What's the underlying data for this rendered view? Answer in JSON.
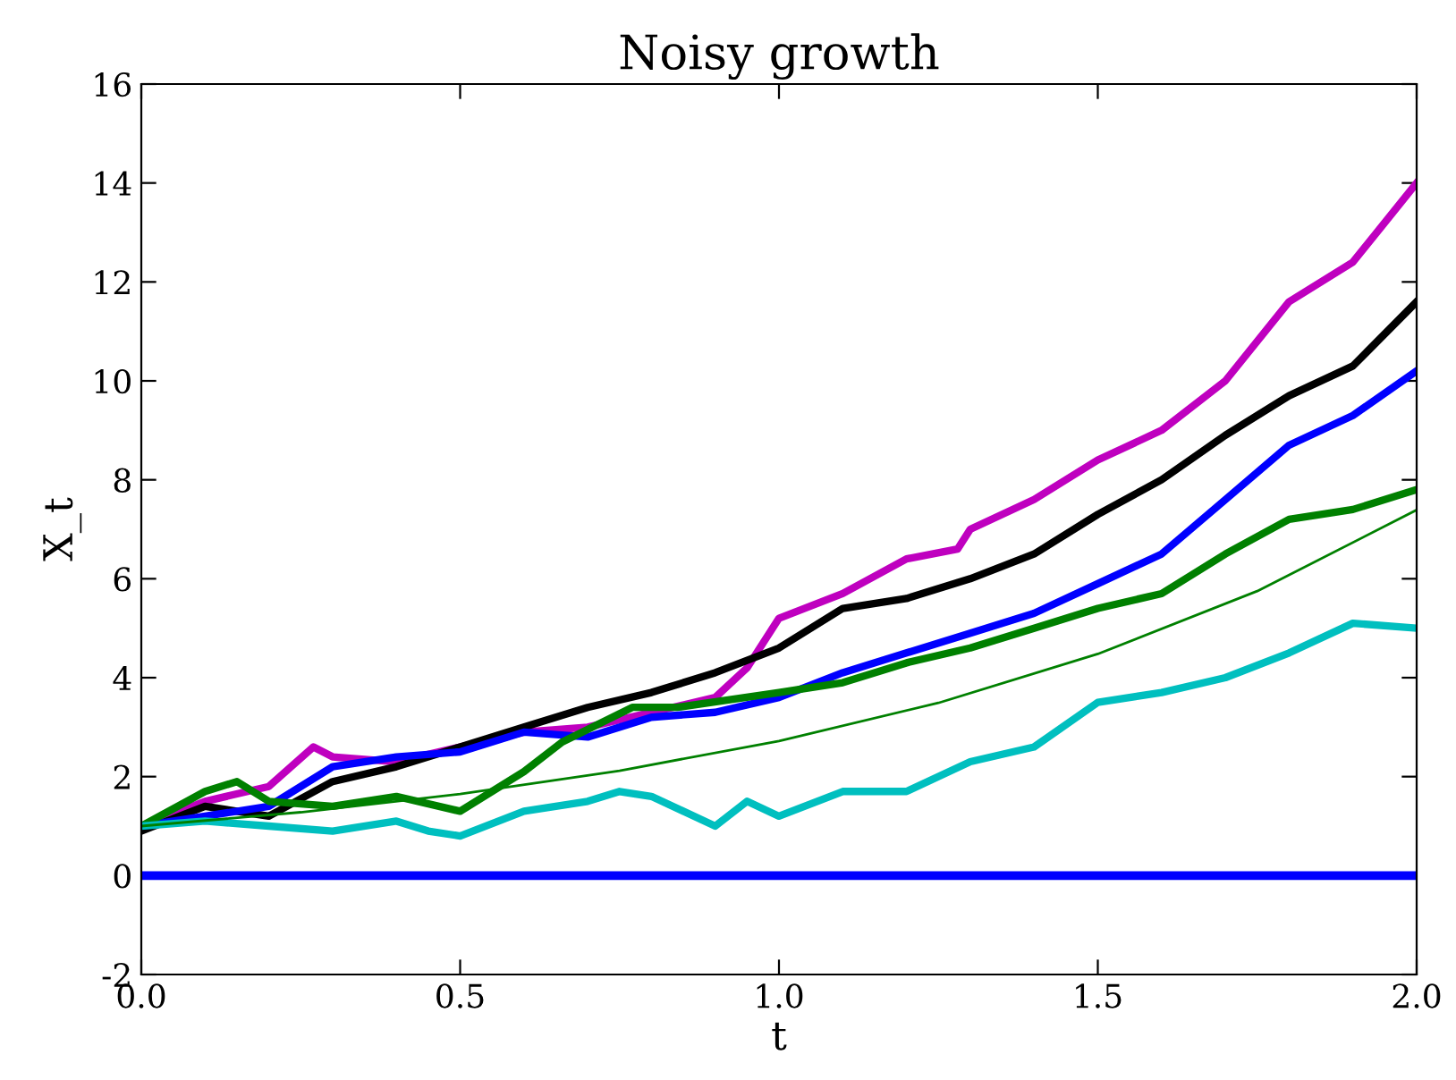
{
  "chart_data": {
    "type": "line",
    "title": "Noisy growth",
    "xlabel": "t",
    "ylabel": "X_t",
    "xlim": [
      0,
      2
    ],
    "ylim": [
      -2,
      16
    ],
    "xticks": [
      {
        "value": 0,
        "label": "0.0"
      },
      {
        "value": 0.5,
        "label": "0.5"
      },
      {
        "value": 1,
        "label": "1.0"
      },
      {
        "value": 1.5,
        "label": "1.5"
      },
      {
        "value": 2,
        "label": "2.0"
      }
    ],
    "yticks": [
      {
        "value": -2,
        "label": "-2"
      },
      0,
      2,
      4,
      6,
      8,
      10,
      12,
      14,
      16
    ],
    "grid": false,
    "series": [
      {
        "color": "#0000ff",
        "x": [
          0,
          2
        ],
        "values": [
          0,
          0
        ]
      },
      {
        "color": "#bf00bf",
        "x": [
          0,
          0.1,
          0.2,
          0.27,
          0.3,
          0.4,
          0.5,
          0.6,
          0.7,
          0.8,
          0.9,
          0.95,
          1.0,
          1.1,
          1.2,
          1.28,
          1.3,
          1.4,
          1.5,
          1.6,
          1.7,
          1.8,
          1.9,
          2.0
        ],
        "values": [
          1.0,
          1.5,
          1.8,
          2.6,
          2.4,
          2.3,
          2.6,
          2.9,
          3.0,
          3.3,
          3.6,
          4.2,
          5.2,
          5.7,
          6.4,
          6.6,
          7.0,
          7.6,
          8.4,
          9.0,
          10.0,
          11.6,
          12.4,
          14.0
        ]
      },
      {
        "color": "#000000",
        "x": [
          0,
          0.1,
          0.2,
          0.3,
          0.4,
          0.5,
          0.6,
          0.7,
          0.8,
          0.9,
          1.0,
          1.1,
          1.2,
          1.3,
          1.4,
          1.5,
          1.6,
          1.7,
          1.8,
          1.9,
          2.0
        ],
        "values": [
          0.9,
          1.4,
          1.2,
          1.9,
          2.2,
          2.6,
          3.0,
          3.4,
          3.7,
          4.1,
          4.6,
          5.4,
          5.6,
          6.0,
          6.5,
          7.3,
          8.0,
          8.9,
          9.7,
          10.3,
          11.6
        ]
      },
      {
        "color": "#0000ff",
        "x": [
          0,
          0.1,
          0.2,
          0.3,
          0.4,
          0.5,
          0.6,
          0.7,
          0.8,
          0.9,
          1.0,
          1.1,
          1.2,
          1.3,
          1.4,
          1.5,
          1.6,
          1.7,
          1.8,
          1.9,
          2.0
        ],
        "values": [
          1.0,
          1.2,
          1.4,
          2.2,
          2.4,
          2.5,
          2.9,
          2.8,
          3.2,
          3.3,
          3.6,
          4.1,
          4.5,
          4.9,
          5.3,
          5.9,
          6.5,
          7.6,
          8.7,
          9.3,
          10.2
        ]
      },
      {
        "color": "#008000",
        "x": [
          0,
          0.1,
          0.15,
          0.2,
          0.3,
          0.4,
          0.5,
          0.6,
          0.66,
          0.77,
          0.84,
          1.0,
          1.1,
          1.2,
          1.3,
          1.4,
          1.5,
          1.6,
          1.7,
          1.8,
          1.9,
          2.0
        ],
        "values": [
          1.0,
          1.7,
          1.9,
          1.5,
          1.4,
          1.6,
          1.3,
          2.1,
          2.7,
          3.4,
          3.4,
          3.7,
          3.9,
          4.3,
          4.6,
          5.0,
          5.4,
          5.7,
          6.5,
          7.2,
          7.4,
          7.8
        ]
      },
      {
        "color": "#00bfbf",
        "x": [
          0,
          0.1,
          0.2,
          0.3,
          0.4,
          0.45,
          0.5,
          0.6,
          0.7,
          0.75,
          0.8,
          0.9,
          0.95,
          1.0,
          1.1,
          1.2,
          1.3,
          1.4,
          1.5,
          1.6,
          1.7,
          1.8,
          1.9,
          2.0
        ],
        "values": [
          1.0,
          1.1,
          1.0,
          0.9,
          1.1,
          0.9,
          0.8,
          1.3,
          1.5,
          1.7,
          1.6,
          1.0,
          1.5,
          1.2,
          1.7,
          1.7,
          2.3,
          2.6,
          3.5,
          3.7,
          4.0,
          4.5,
          5.1,
          5.0
        ]
      },
      {
        "color": "#008000",
        "x": [
          0,
          0.25,
          0.5,
          0.75,
          1.0,
          1.25,
          1.5,
          1.75,
          2.0
        ],
        "values": [
          1,
          1.28,
          1.65,
          2.12,
          2.72,
          3.49,
          4.48,
          5.75,
          7.39
        ]
      }
    ]
  }
}
